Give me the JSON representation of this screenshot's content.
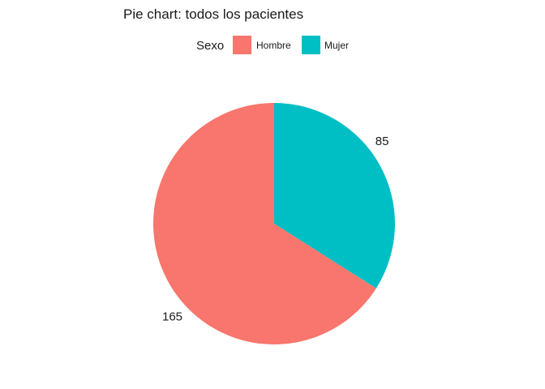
{
  "chart_data": {
    "type": "pie",
    "title": "Pie chart: todos los pacientes",
    "legend": {
      "title": "Sexo",
      "placement": "top"
    },
    "categories": [
      "Hombre",
      "Mujer"
    ],
    "values": [
      165,
      85
    ],
    "colors": [
      "#F8766D",
      "#00BFC4"
    ],
    "data_labels": [
      "165",
      "85"
    ],
    "start": "12 o'clock",
    "direction": "Mujer clockwise from top, Hombre counter-clockwise"
  }
}
